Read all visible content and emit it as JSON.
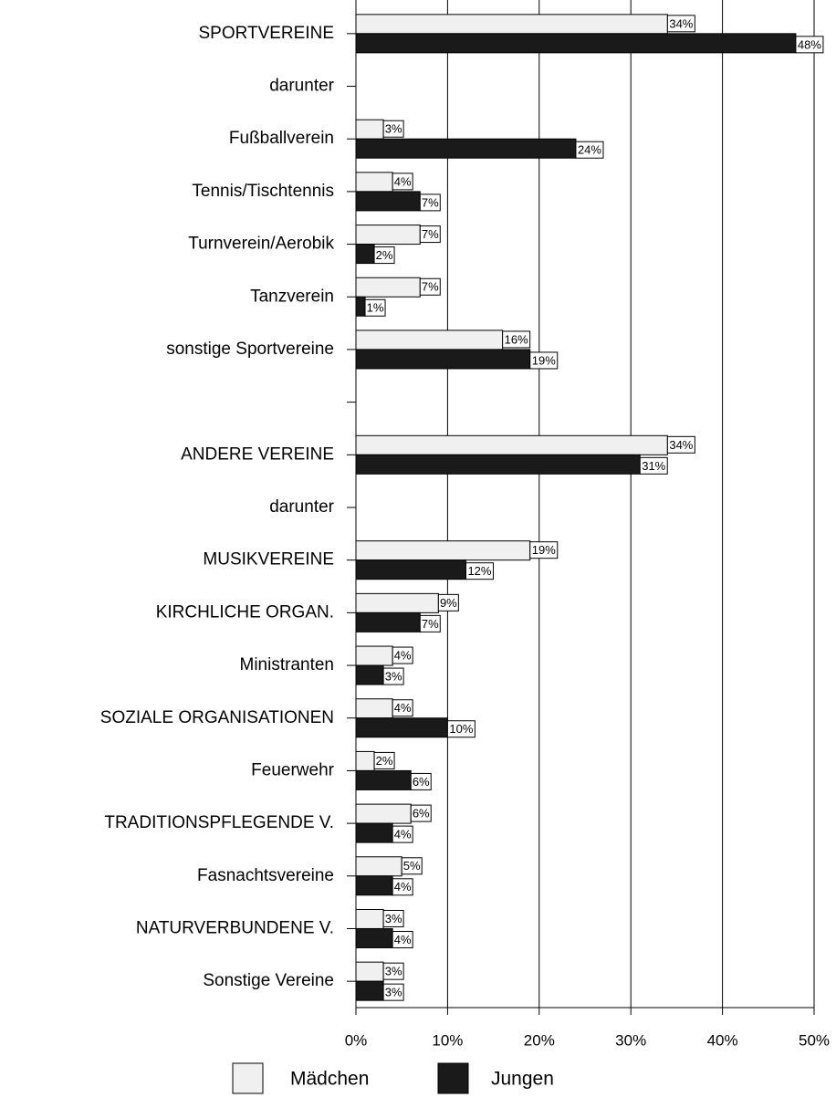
{
  "chart_data": {
    "type": "bar",
    "orientation": "horizontal",
    "categories": [
      "SPORTVEREINE",
      "darunter",
      "Fußballverein",
      "Tennis/Tischtennis",
      "Turnverein/Aerobik",
      "Tanzverein",
      "sonstige Sportvereine",
      null,
      "ANDERE VEREINE",
      "darunter",
      "MUSIKVEREINE",
      "KIRCHLICHE ORGAN.",
      "Ministranten",
      "SOZIALE ORGANISATIONEN",
      "Feuerwehr",
      "TRADITIONSPFLEGENDE  V.",
      "Fasnachtsvereine",
      "NATURVERBUNDENE V.",
      "Sonstige Vereine"
    ],
    "series": [
      {
        "name": "Mädchen",
        "color": "#f0f0f0",
        "values": [
          34,
          null,
          3,
          4,
          7,
          7,
          16,
          null,
          34,
          null,
          19,
          9,
          4,
          4,
          2,
          6,
          5,
          3,
          3
        ],
        "value_labels": [
          "34%",
          null,
          "3%",
          "4%",
          "7%",
          "7%",
          "16%",
          null,
          "34%",
          null,
          "19%",
          "9%",
          "4%",
          "4%",
          "2%",
          "6%",
          "5%",
          "3%",
          "3%"
        ]
      },
      {
        "name": "Jungen",
        "color": "#1a1a1a",
        "values": [
          48,
          null,
          24,
          7,
          2,
          1,
          19,
          null,
          31,
          null,
          12,
          7,
          3,
          10,
          6,
          4,
          4,
          4,
          3
        ],
        "value_labels": [
          "48%",
          null,
          "24%",
          "7%",
          "2%",
          "1%",
          "19%",
          null,
          "31%",
          null,
          "12%",
          "7%",
          "3%",
          "10%",
          "6%",
          "4%",
          "4%",
          "4%",
          "3%"
        ]
      }
    ],
    "xlim": [
      0,
      50
    ],
    "xticks": [
      {
        "value": 0,
        "label": "0%"
      },
      {
        "value": 10,
        "label": "10%"
      },
      {
        "value": 20,
        "label": "20%"
      },
      {
        "value": 30,
        "label": "30%"
      },
      {
        "value": 40,
        "label": "40%"
      },
      {
        "value": 50,
        "label": "50%"
      }
    ],
    "grid": true,
    "legend": "bottom"
  }
}
